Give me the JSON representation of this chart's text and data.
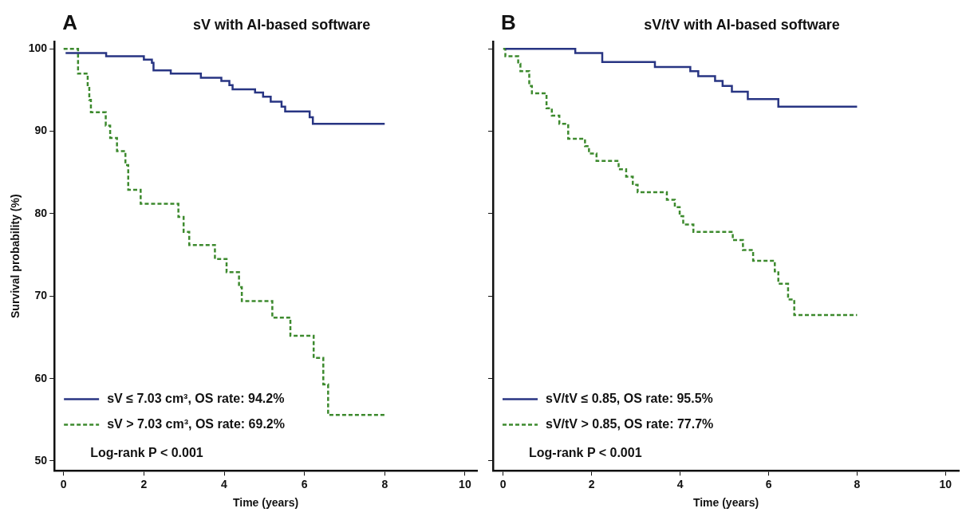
{
  "chart_data": [
    {
      "type": "step",
      "title": "sV with AI-based software",
      "xlabel": "Time (years)",
      "ylabel": "Survival probability (%)",
      "annotations": [
        "A",
        {
          "text": "Log-rank P < 0.001"
        }
      ],
      "xlim": [
        -0.23,
        10.3
      ],
      "xticks": [
        0,
        2,
        4,
        6,
        8,
        10
      ],
      "ylim": [
        48.8,
        100.9
      ],
      "yticks": [
        50,
        60,
        70,
        80,
        90,
        100
      ],
      "grid": false,
      "legend": "bottom left",
      "series": [
        {
          "name": "sV ≤ 7.03 cm³, OS rate: 94.2%",
          "color": "#283583",
          "line_style": "solid",
          "x": [
            0.05,
            1.06,
            2.0,
            2.2,
            2.24,
            2.67,
            3.42,
            3.93,
            4.13,
            4.21,
            4.77,
            4.97,
            5.16,
            5.43,
            5.52,
            6.13,
            6.21,
            8.0
          ],
          "values": [
            99.5,
            99.1,
            98.7,
            98.3,
            97.4,
            97.0,
            96.5,
            96.1,
            95.6,
            95.1,
            94.7,
            94.2,
            93.6,
            93.0,
            92.4,
            91.7,
            90.9,
            90.9
          ]
        },
        {
          "name": "sV > 7.03 cm³, OS rate: 69.2%",
          "color": "#3d8a2e",
          "line_style": "dashed",
          "x": [
            0,
            0.36,
            0.6,
            0.64,
            0.68,
            1.05,
            1.16,
            1.33,
            1.54,
            1.61,
            1.92,
            2.86,
            2.99,
            3.13,
            3.77,
            4.06,
            4.37,
            4.44,
            5.2,
            5.65,
            6.23,
            6.47,
            6.59,
            8.0
          ],
          "values": [
            100,
            97.0,
            95.4,
            93.8,
            92.3,
            90.7,
            89.2,
            87.6,
            85.9,
            82.9,
            81.2,
            79.6,
            77.8,
            76.2,
            74.5,
            72.9,
            71.1,
            69.4,
            67.4,
            65.2,
            62.5,
            59.3,
            55.6,
            55.6
          ]
        }
      ]
    },
    {
      "type": "step",
      "title": "sV/tV with AI-based software",
      "xlabel": "Time (years)",
      "annotations": [
        "B",
        {
          "text": "Log-rank P < 0.001"
        }
      ],
      "xlim": [
        -0.23,
        10.3
      ],
      "xticks": [
        0,
        2,
        4,
        6,
        8,
        10
      ],
      "ylim": [
        48.8,
        100.9
      ],
      "yticks": [
        50,
        60,
        70,
        80,
        90,
        100
      ],
      "tick_labels": "x",
      "grid": false,
      "legend": "bottom left",
      "series": [
        {
          "name": "sV/tV ≤ 0.85, OS rate: 95.5%",
          "color": "#283583",
          "line_style": "solid",
          "x": [
            0.05,
            1.63,
            2.24,
            3.43,
            4.23,
            4.41,
            4.79,
            4.96,
            5.17,
            5.53,
            6.22,
            8.0
          ],
          "values": [
            100,
            99.5,
            98.4,
            97.8,
            97.3,
            96.7,
            96.1,
            95.5,
            94.8,
            93.9,
            93.0,
            93.0
          ]
        },
        {
          "name": "sV/tV > 0.85, OS rate: 77.7%",
          "color": "#3d8a2e",
          "line_style": "dashed",
          "x": [
            0,
            0.05,
            0.34,
            0.39,
            0.59,
            0.65,
            0.98,
            1.1,
            1.27,
            1.47,
            1.85,
            1.94,
            2.11,
            2.61,
            2.78,
            2.93,
            3.04,
            3.7,
            3.88,
            3.99,
            4.07,
            4.3,
            5.19,
            5.42,
            5.65,
            6.14,
            6.22,
            6.44,
            6.58,
            8.0
          ],
          "values": [
            100,
            99.1,
            98.2,
            97.3,
            95.5,
            94.6,
            92.8,
            91.9,
            90.9,
            89.1,
            88.2,
            87.3,
            86.4,
            85.4,
            84.5,
            83.5,
            82.6,
            81.7,
            80.8,
            79.7,
            78.7,
            77.8,
            76.8,
            75.6,
            74.3,
            73.0,
            71.5,
            69.6,
            67.7,
            67.7
          ]
        }
      ]
    }
  ]
}
